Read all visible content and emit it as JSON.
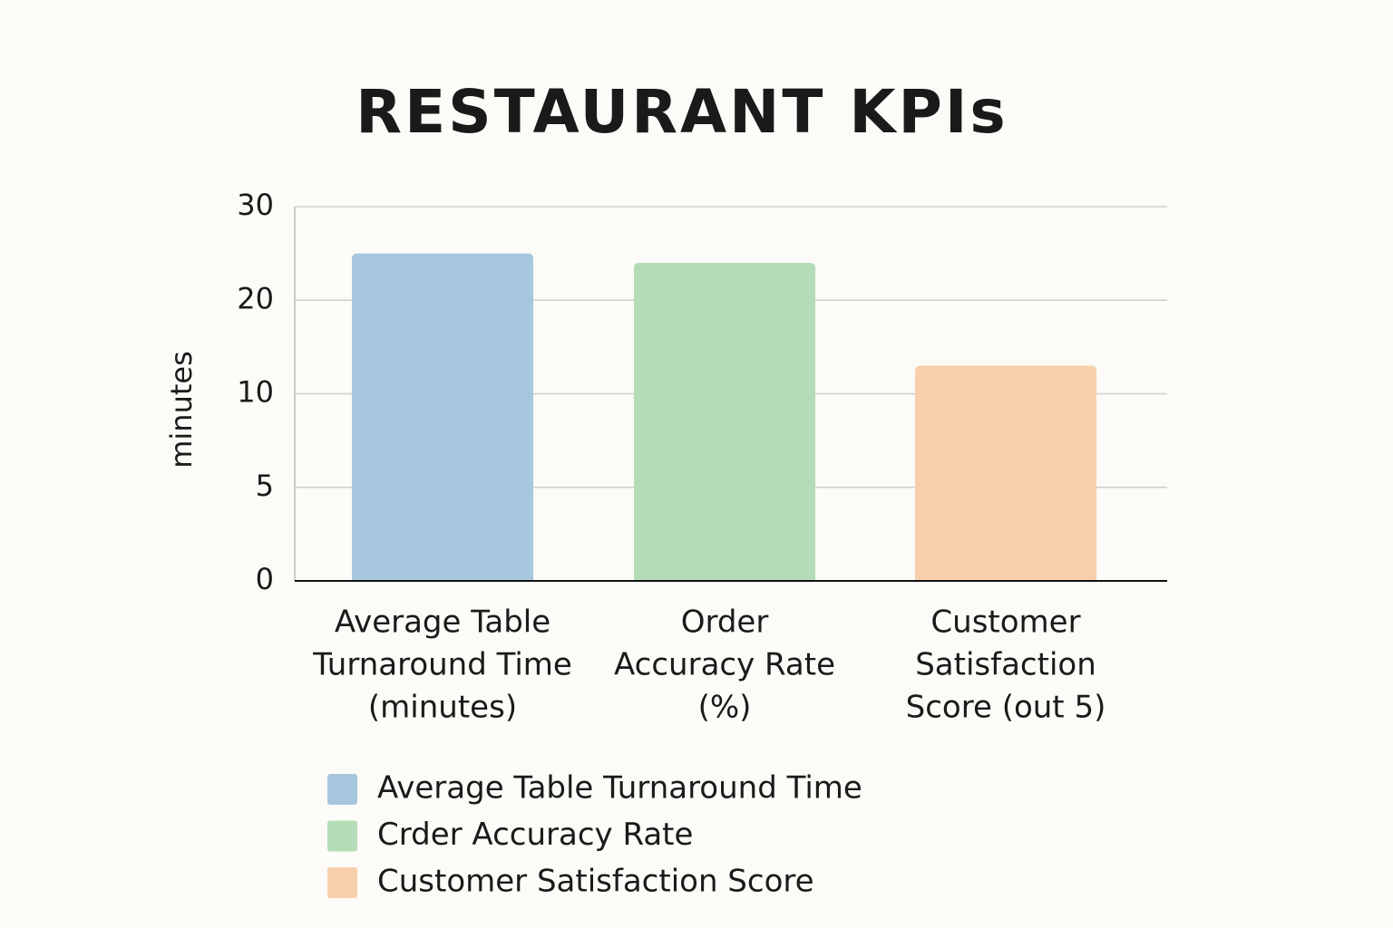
{
  "chart_data": {
    "type": "bar",
    "title": "RESTAURANT KPIs",
    "y_label": "minutes",
    "categories": [
      [
        "Average Table",
        "Turnaround Time",
        "(minutes)"
      ],
      [
        "Order",
        "Accuracy Rate",
        "(%)"
      ],
      [
        "Customer",
        "Satisfaction",
        "Score (out 5)"
      ]
    ],
    "values": [
      25,
      24,
      13
    ],
    "colors": [
      "#a7c7de",
      "#b4dcb7",
      "#f7cfab"
    ],
    "legend": [
      "Average Table Turnaround Time",
      "Crder Accuracy Rate",
      "Customer Satisfaction Score"
    ],
    "ylim": [
      0,
      30
    ],
    "yticks": [
      0,
      5,
      10,
      20,
      30
    ],
    "grid": true
  }
}
